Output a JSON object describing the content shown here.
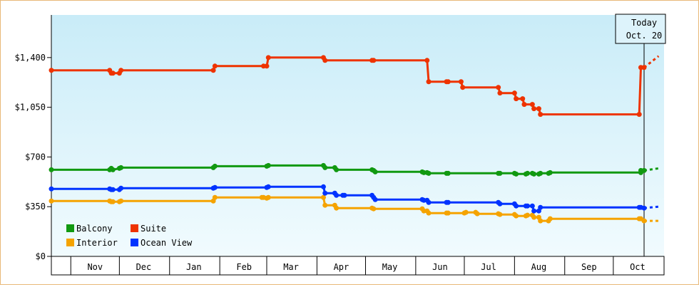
{
  "chart_data": {
    "type": "line",
    "ylim": [
      0,
      1700
    ],
    "yticks": [
      0,
      350,
      700,
      1050,
      1400
    ],
    "ytick_labels": [
      "$0",
      "$350",
      "$700",
      "$1,050",
      "$1,400"
    ],
    "months": [
      "Nov",
      "Dec",
      "Jan",
      "Feb",
      "Mar",
      "Apr",
      "May",
      "Jun",
      "Jul",
      "Aug",
      "Sep",
      "Oct"
    ],
    "today_label_1": "Today",
    "today_label_2": "Oct. 20",
    "grid": false,
    "legend_position": "bottom-left",
    "series": [
      {
        "name": "Balcony",
        "color": "#119911",
        "points": [
          [
            "2023-10-20",
            610
          ],
          [
            "2023-11-25",
            610
          ],
          [
            "2023-11-26",
            620
          ],
          [
            "2023-11-27",
            610
          ],
          [
            "2023-12-01",
            620
          ],
          [
            "2023-12-02",
            625
          ],
          [
            "2024-01-28",
            625
          ],
          [
            "2024-01-29",
            635
          ],
          [
            "2024-03-01",
            635
          ],
          [
            "2024-03-02",
            640
          ],
          [
            "2024-04-05",
            640
          ],
          [
            "2024-04-06",
            625
          ],
          [
            "2024-04-12",
            625
          ],
          [
            "2024-04-13",
            610
          ],
          [
            "2024-05-05",
            610
          ],
          [
            "2024-05-06",
            605
          ],
          [
            "2024-05-07",
            595
          ],
          [
            "2024-06-05",
            595
          ],
          [
            "2024-06-06",
            590
          ],
          [
            "2024-06-08",
            590
          ],
          [
            "2024-06-09",
            585
          ],
          [
            "2024-06-20",
            585
          ],
          [
            "2024-06-21",
            585
          ],
          [
            "2024-07-22",
            585
          ],
          [
            "2024-07-23",
            585
          ],
          [
            "2024-08-01",
            585
          ],
          [
            "2024-08-02",
            580
          ],
          [
            "2024-08-08",
            580
          ],
          [
            "2024-08-09",
            585
          ],
          [
            "2024-08-12",
            585
          ],
          [
            "2024-08-13",
            580
          ],
          [
            "2024-08-16",
            580
          ],
          [
            "2024-08-17",
            585
          ],
          [
            "2024-08-22",
            585
          ],
          [
            "2024-08-23",
            590
          ],
          [
            "2024-10-18",
            590
          ],
          [
            "2024-10-18",
            605
          ],
          [
            "2024-10-20",
            605
          ]
        ],
        "forecast": [
          [
            "2024-10-20",
            605
          ],
          [
            "2024-10-29",
            620
          ]
        ]
      },
      {
        "name": "Suite",
        "color": "#ee3300",
        "points": [
          [
            "2023-10-20",
            1310
          ],
          [
            "2023-11-25",
            1310
          ],
          [
            "2023-11-26",
            1290
          ],
          [
            "2023-11-27",
            1290
          ],
          [
            "2023-12-01",
            1290
          ],
          [
            "2023-12-02",
            1310
          ],
          [
            "2024-01-28",
            1310
          ],
          [
            "2024-01-29",
            1340
          ],
          [
            "2024-02-28",
            1340
          ],
          [
            "2024-03-01",
            1340
          ],
          [
            "2024-03-02",
            1400
          ],
          [
            "2024-04-05",
            1400
          ],
          [
            "2024-04-06",
            1380
          ],
          [
            "2024-05-05",
            1380
          ],
          [
            "2024-05-06",
            1380
          ],
          [
            "2024-06-08",
            1380
          ],
          [
            "2024-06-09",
            1230
          ],
          [
            "2024-06-20",
            1230
          ],
          [
            "2024-06-21",
            1230
          ],
          [
            "2024-06-29",
            1230
          ],
          [
            "2024-06-30",
            1190
          ],
          [
            "2024-07-22",
            1190
          ],
          [
            "2024-07-23",
            1150
          ],
          [
            "2024-08-01",
            1150
          ],
          [
            "2024-08-02",
            1110
          ],
          [
            "2024-08-06",
            1110
          ],
          [
            "2024-08-07",
            1070
          ],
          [
            "2024-08-12",
            1070
          ],
          [
            "2024-08-13",
            1040
          ],
          [
            "2024-08-16",
            1040
          ],
          [
            "2024-08-17",
            1000
          ],
          [
            "2024-10-17",
            1000
          ],
          [
            "2024-10-18",
            1330
          ],
          [
            "2024-10-20",
            1330
          ]
        ],
        "forecast": [
          [
            "2024-10-20",
            1330
          ],
          [
            "2024-10-29",
            1410
          ]
        ]
      },
      {
        "name": "Interior",
        "color": "#f5a300",
        "points": [
          [
            "2023-10-20",
            390
          ],
          [
            "2023-11-25",
            390
          ],
          [
            "2023-11-26",
            385
          ],
          [
            "2023-11-27",
            385
          ],
          [
            "2023-12-01",
            385
          ],
          [
            "2023-12-02",
            390
          ],
          [
            "2024-01-28",
            390
          ],
          [
            "2024-01-29",
            415
          ],
          [
            "2024-02-27",
            415
          ],
          [
            "2024-02-28",
            415
          ],
          [
            "2024-03-01",
            410
          ],
          [
            "2024-03-02",
            415
          ],
          [
            "2024-04-05",
            415
          ],
          [
            "2024-04-06",
            360
          ],
          [
            "2024-04-12",
            360
          ],
          [
            "2024-04-13",
            340
          ],
          [
            "2024-05-05",
            340
          ],
          [
            "2024-05-06",
            335
          ],
          [
            "2024-06-05",
            335
          ],
          [
            "2024-06-06",
            320
          ],
          [
            "2024-06-08",
            320
          ],
          [
            "2024-06-09",
            305
          ],
          [
            "2024-06-20",
            305
          ],
          [
            "2024-06-21",
            305
          ],
          [
            "2024-07-01",
            305
          ],
          [
            "2024-07-02",
            310
          ],
          [
            "2024-07-08",
            310
          ],
          [
            "2024-07-09",
            300
          ],
          [
            "2024-07-22",
            300
          ],
          [
            "2024-07-23",
            295
          ],
          [
            "2024-08-01",
            295
          ],
          [
            "2024-08-02",
            285
          ],
          [
            "2024-08-08",
            285
          ],
          [
            "2024-08-09",
            290
          ],
          [
            "2024-08-12",
            290
          ],
          [
            "2024-08-13",
            275
          ],
          [
            "2024-08-16",
            275
          ],
          [
            "2024-08-17",
            250
          ],
          [
            "2024-08-22",
            250
          ],
          [
            "2024-08-23",
            265
          ],
          [
            "2024-10-17",
            265
          ],
          [
            "2024-10-18",
            265
          ],
          [
            "2024-10-20",
            250
          ]
        ],
        "forecast": [
          [
            "2024-10-20",
            250
          ],
          [
            "2024-10-29",
            250
          ]
        ]
      },
      {
        "name": "Ocean View",
        "color": "#0033ff",
        "points": [
          [
            "2023-10-20",
            475
          ],
          [
            "2023-11-25",
            475
          ],
          [
            "2023-11-26",
            470
          ],
          [
            "2023-11-27",
            470
          ],
          [
            "2023-12-01",
            470
          ],
          [
            "2023-12-02",
            480
          ],
          [
            "2024-01-28",
            480
          ],
          [
            "2024-01-29",
            485
          ],
          [
            "2024-03-01",
            485
          ],
          [
            "2024-03-02",
            490
          ],
          [
            "2024-04-05",
            490
          ],
          [
            "2024-04-06",
            445
          ],
          [
            "2024-04-12",
            445
          ],
          [
            "2024-04-13",
            430
          ],
          [
            "2024-04-17",
            430
          ],
          [
            "2024-04-18",
            430
          ],
          [
            "2024-05-05",
            430
          ],
          [
            "2024-05-06",
            415
          ],
          [
            "2024-05-07",
            400
          ],
          [
            "2024-06-05",
            400
          ],
          [
            "2024-06-06",
            395
          ],
          [
            "2024-06-08",
            395
          ],
          [
            "2024-06-09",
            380
          ],
          [
            "2024-06-20",
            380
          ],
          [
            "2024-06-21",
            380
          ],
          [
            "2024-07-22",
            380
          ],
          [
            "2024-07-23",
            370
          ],
          [
            "2024-08-01",
            370
          ],
          [
            "2024-08-02",
            355
          ],
          [
            "2024-08-08",
            355
          ],
          [
            "2024-08-09",
            355
          ],
          [
            "2024-08-12",
            355
          ],
          [
            "2024-08-13",
            320
          ],
          [
            "2024-08-16",
            320
          ],
          [
            "2024-08-17",
            345
          ],
          [
            "2024-10-17",
            345
          ],
          [
            "2024-10-18",
            345
          ],
          [
            "2024-10-20",
            340
          ]
        ],
        "forecast": [
          [
            "2024-10-20",
            340
          ],
          [
            "2024-10-29",
            350
          ]
        ]
      }
    ]
  }
}
